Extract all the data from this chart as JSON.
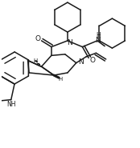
{
  "bg": "#ffffff",
  "lc": "#1a1a1a",
  "lw": 1.1,
  "fw": 1.74,
  "fh": 1.85,
  "dpi": 100,
  "xl": [
    -5,
    105
  ],
  "yl": [
    -5,
    115
  ]
}
